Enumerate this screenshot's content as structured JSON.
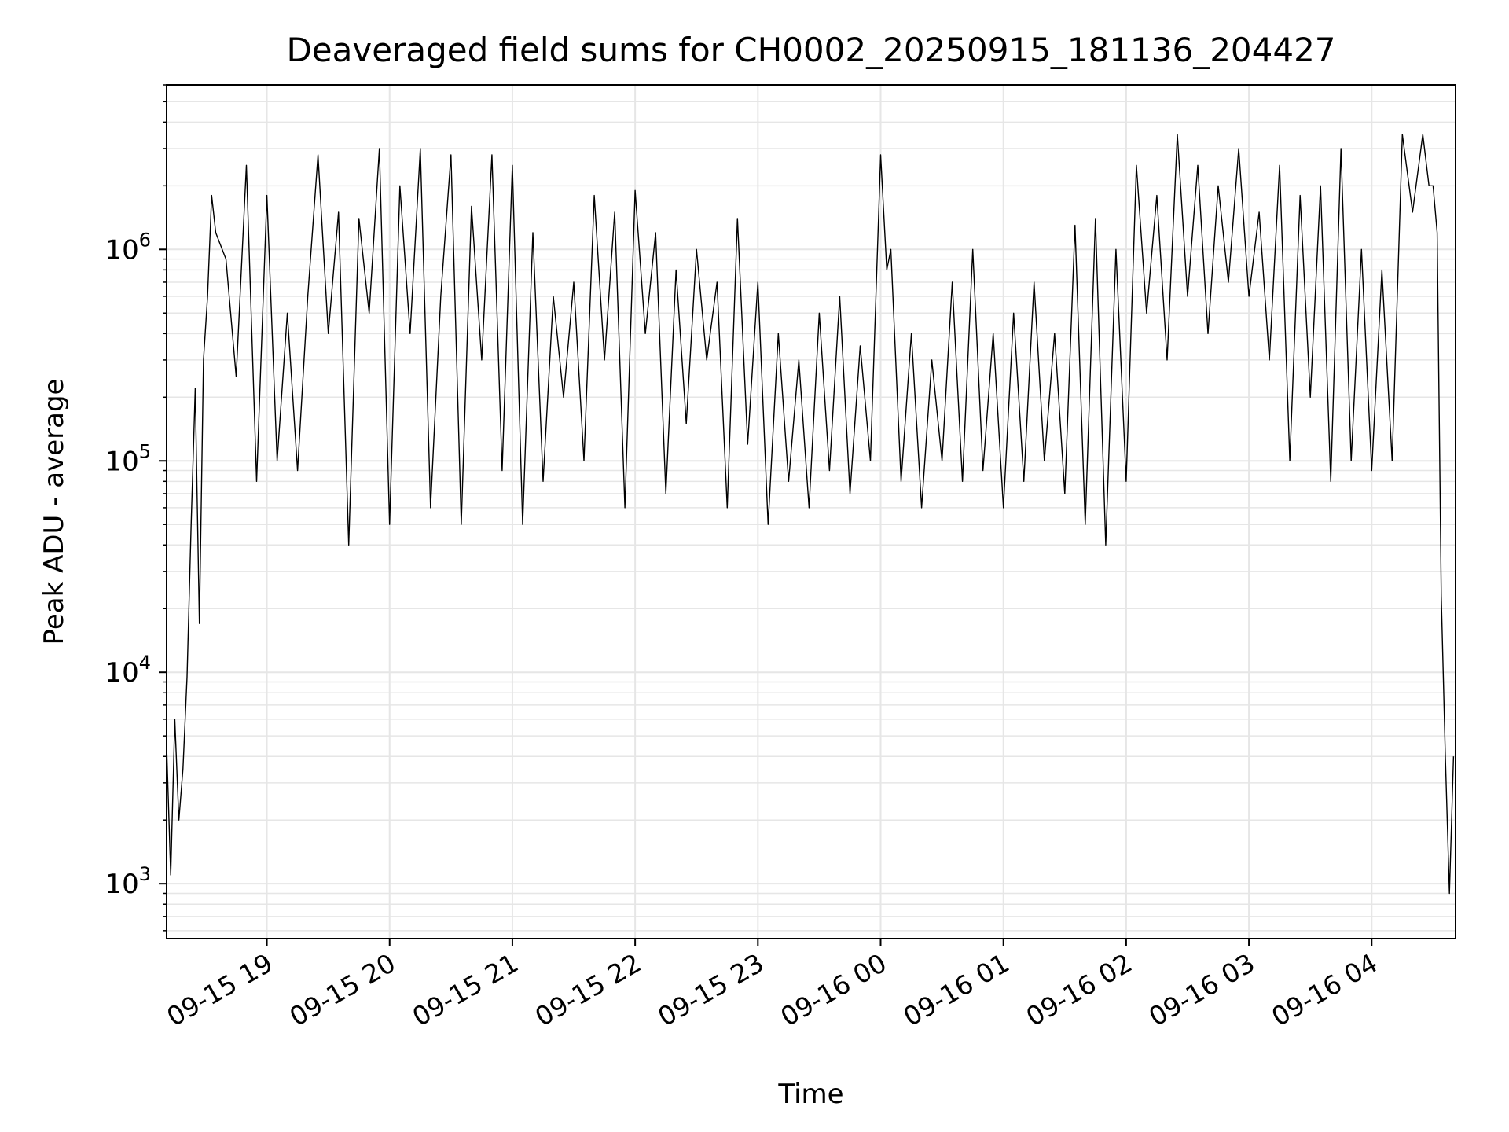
{
  "chart_data": {
    "type": "line",
    "title": "Deaveraged field sums for CH0002_20250915_181136_204427",
    "xlabel": "Time",
    "ylabel": "Peak ADU - average",
    "yscale": "log",
    "xlim": [
      "2025-09-15 18:11",
      "2025-09-16 04:41"
    ],
    "ylim": [
      550,
      6000000
    ],
    "grid": true,
    "line_color": "#000000",
    "grid_color": "#e6e6e6",
    "x_ticks": [
      {
        "value": "2025-09-15 19:00",
        "label": "09-15 19"
      },
      {
        "value": "2025-09-15 20:00",
        "label": "09-15 20"
      },
      {
        "value": "2025-09-15 21:00",
        "label": "09-15 21"
      },
      {
        "value": "2025-09-15 22:00",
        "label": "09-15 22"
      },
      {
        "value": "2025-09-15 23:00",
        "label": "09-15 23"
      },
      {
        "value": "2025-09-16 00:00",
        "label": "09-16 00"
      },
      {
        "value": "2025-09-16 01:00",
        "label": "09-16 01"
      },
      {
        "value": "2025-09-16 02:00",
        "label": "09-16 02"
      },
      {
        "value": "2025-09-16 03:00",
        "label": "09-16 03"
      },
      {
        "value": "2025-09-16 04:00",
        "label": "09-16 04"
      }
    ],
    "y_ticks": [
      {
        "value": 1000,
        "base": "10",
        "exp": "3"
      },
      {
        "value": 10000,
        "base": "10",
        "exp": "4"
      },
      {
        "value": 100000,
        "base": "10",
        "exp": "5"
      },
      {
        "value": 1000000,
        "base": "10",
        "exp": "6"
      }
    ],
    "series": [
      {
        "x": [
          "2025-09-15 18:11",
          "2025-09-15 18:13",
          "2025-09-15 18:15",
          "2025-09-15 18:17",
          "2025-09-15 18:19",
          "2025-09-15 18:21",
          "2025-09-15 18:23",
          "2025-09-15 18:25",
          "2025-09-15 18:27",
          "2025-09-15 18:29",
          "2025-09-15 18:31",
          "2025-09-15 18:33",
          "2025-09-15 18:35",
          "2025-09-15 18:40",
          "2025-09-15 18:45",
          "2025-09-15 18:50",
          "2025-09-15 18:55",
          "2025-09-15 19:00",
          "2025-09-15 19:05",
          "2025-09-15 19:10",
          "2025-09-15 19:15",
          "2025-09-15 19:20",
          "2025-09-15 19:25",
          "2025-09-15 19:30",
          "2025-09-15 19:35",
          "2025-09-15 19:40",
          "2025-09-15 19:45",
          "2025-09-15 19:50",
          "2025-09-15 19:55",
          "2025-09-15 20:00",
          "2025-09-15 20:05",
          "2025-09-15 20:10",
          "2025-09-15 20:15",
          "2025-09-15 20:20",
          "2025-09-15 20:25",
          "2025-09-15 20:30",
          "2025-09-15 20:35",
          "2025-09-15 20:40",
          "2025-09-15 20:45",
          "2025-09-15 20:50",
          "2025-09-15 20:55",
          "2025-09-15 21:00",
          "2025-09-15 21:05",
          "2025-09-15 21:10",
          "2025-09-15 21:15",
          "2025-09-15 21:20",
          "2025-09-15 21:25",
          "2025-09-15 21:30",
          "2025-09-15 21:35",
          "2025-09-15 21:40",
          "2025-09-15 21:45",
          "2025-09-15 21:50",
          "2025-09-15 21:55",
          "2025-09-15 22:00",
          "2025-09-15 22:05",
          "2025-09-15 22:10",
          "2025-09-15 22:15",
          "2025-09-15 22:20",
          "2025-09-15 22:25",
          "2025-09-15 22:30",
          "2025-09-15 22:35",
          "2025-09-15 22:40",
          "2025-09-15 22:45",
          "2025-09-15 22:50",
          "2025-09-15 22:55",
          "2025-09-15 23:00",
          "2025-09-15 23:05",
          "2025-09-15 23:10",
          "2025-09-15 23:15",
          "2025-09-15 23:20",
          "2025-09-15 23:25",
          "2025-09-15 23:30",
          "2025-09-15 23:35",
          "2025-09-15 23:40",
          "2025-09-15 23:45",
          "2025-09-15 23:50",
          "2025-09-15 23:55",
          "2025-09-16 00:00",
          "2025-09-16 00:03",
          "2025-09-16 00:05",
          "2025-09-16 00:10",
          "2025-09-16 00:15",
          "2025-09-16 00:20",
          "2025-09-16 00:25",
          "2025-09-16 00:30",
          "2025-09-16 00:35",
          "2025-09-16 00:40",
          "2025-09-16 00:45",
          "2025-09-16 00:50",
          "2025-09-16 00:55",
          "2025-09-16 01:00",
          "2025-09-16 01:05",
          "2025-09-16 01:10",
          "2025-09-16 01:15",
          "2025-09-16 01:20",
          "2025-09-16 01:25",
          "2025-09-16 01:30",
          "2025-09-16 01:35",
          "2025-09-16 01:40",
          "2025-09-16 01:45",
          "2025-09-16 01:50",
          "2025-09-16 01:55",
          "2025-09-16 02:00",
          "2025-09-16 02:05",
          "2025-09-16 02:10",
          "2025-09-16 02:15",
          "2025-09-16 02:20",
          "2025-09-16 02:25",
          "2025-09-16 02:30",
          "2025-09-16 02:35",
          "2025-09-16 02:40",
          "2025-09-16 02:45",
          "2025-09-16 02:50",
          "2025-09-16 02:55",
          "2025-09-16 03:00",
          "2025-09-16 03:05",
          "2025-09-16 03:10",
          "2025-09-16 03:15",
          "2025-09-16 03:20",
          "2025-09-16 03:25",
          "2025-09-16 03:30",
          "2025-09-16 03:35",
          "2025-09-16 03:40",
          "2025-09-16 03:45",
          "2025-09-16 03:50",
          "2025-09-16 03:55",
          "2025-09-16 04:00",
          "2025-09-16 04:05",
          "2025-09-16 04:10",
          "2025-09-16 04:15",
          "2025-09-16 04:20",
          "2025-09-16 04:25",
          "2025-09-16 04:28",
          "2025-09-16 04:30",
          "2025-09-16 04:32",
          "2025-09-16 04:34",
          "2025-09-16 04:36",
          "2025-09-16 04:38",
          "2025-09-16 04:40"
        ],
        "values": [
          4500,
          1100,
          6000,
          2000,
          3500,
          9500,
          50000,
          220000,
          17000,
          300000,
          600000,
          1800000,
          1200000,
          900000,
          250000,
          2500000,
          80000,
          1800000,
          100000,
          500000,
          90000,
          600000,
          2800000,
          400000,
          1500000,
          40000,
          1400000,
          500000,
          3000000,
          50000,
          2000000,
          400000,
          3000000,
          60000,
          600000,
          2800000,
          50000,
          1600000,
          300000,
          2800000,
          90000,
          2500000,
          50000,
          1200000,
          80000,
          600000,
          200000,
          700000,
          100000,
          1800000,
          300000,
          1500000,
          60000,
          1900000,
          400000,
          1200000,
          70000,
          800000,
          150000,
          1000000,
          300000,
          700000,
          60000,
          1400000,
          120000,
          700000,
          50000,
          400000,
          80000,
          300000,
          60000,
          500000,
          90000,
          600000,
          70000,
          350000,
          100000,
          2800000,
          800000,
          1000000,
          80000,
          400000,
          60000,
          300000,
          100000,
          700000,
          80000,
          1000000,
          90000,
          400000,
          60000,
          500000,
          80000,
          700000,
          100000,
          400000,
          70000,
          1300000,
          50000,
          1400000,
          40000,
          1000000,
          80000,
          2500000,
          500000,
          1800000,
          300000,
          3500000,
          600000,
          2500000,
          400000,
          2000000,
          700000,
          3000000,
          600000,
          1500000,
          300000,
          2500000,
          100000,
          1800000,
          200000,
          2000000,
          80000,
          3000000,
          100000,
          1000000,
          90000,
          800000,
          100000,
          3500000,
          1500000,
          3500000,
          2000000,
          2000000,
          1200000,
          23000,
          4000,
          900,
          4000
        ]
      }
    ]
  }
}
